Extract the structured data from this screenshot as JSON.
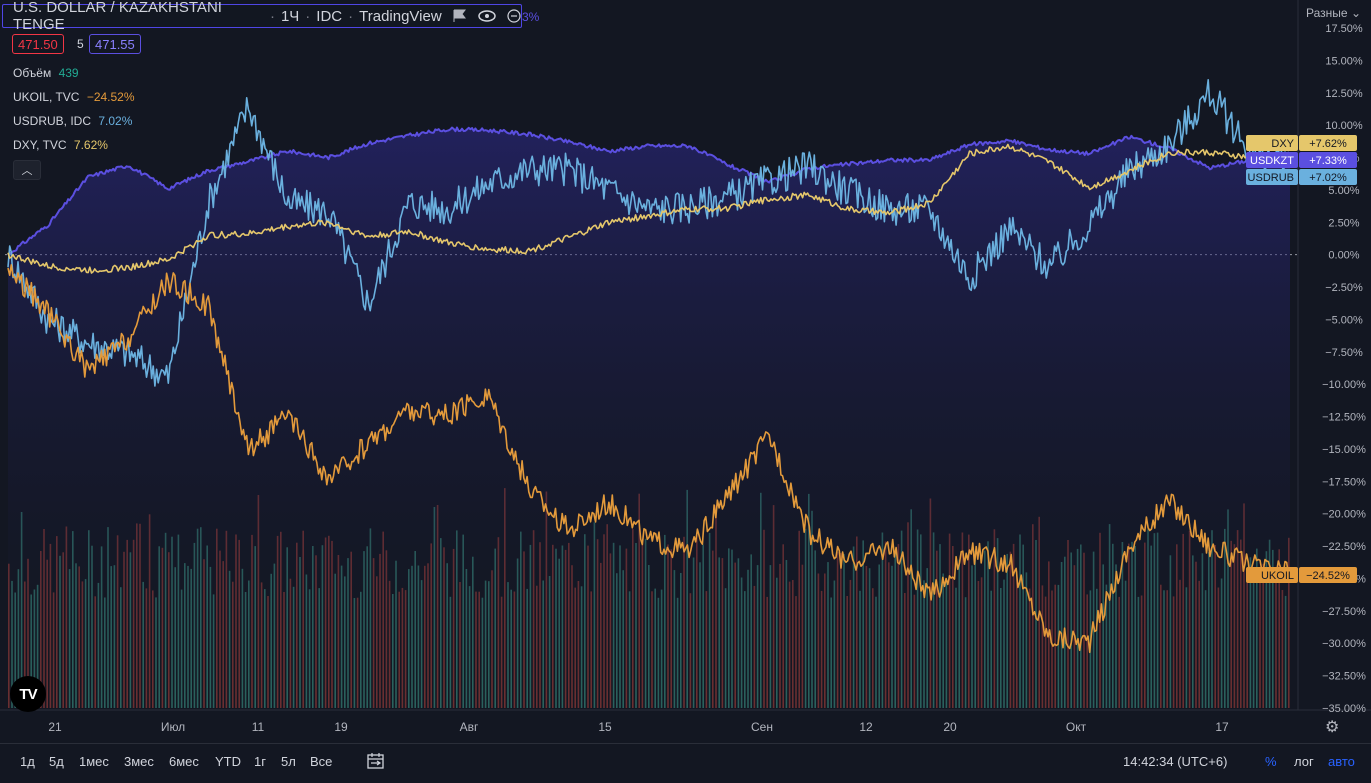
{
  "header": {
    "symbol": "U.S. DOLLAR / KAZAKHSTANI TENGE",
    "interval": "1Ч",
    "exchange": "IDC",
    "source": "TradingView",
    "extra": "3%"
  },
  "quote": {
    "bid": "471.50",
    "spread": "5",
    "ask": "471.55"
  },
  "legend": {
    "volume_label": "Объём",
    "volume_value": "439",
    "ukoil_label": "UKOIL, TVC",
    "ukoil_value": "−24.52%",
    "usdrub_label": "USDRUB, IDC",
    "usdrub_value": "7.02%",
    "dxy_label": "DXY, TVC",
    "dxy_value": "7.62%"
  },
  "scale_mode_label": "Разные",
  "bottom": {
    "periods": [
      "1д",
      "5д",
      "1мес",
      "3мес",
      "6мес",
      "YTD",
      "1г",
      "5л",
      "Все"
    ],
    "clock": "14:42:34 (UTC+6)",
    "percent": "%",
    "log": "лог",
    "auto": "авто"
  },
  "icons": [
    "eye-icon",
    "flag-icon",
    "compare-icon",
    "gear-icon",
    "chevron-up-icon",
    "tradingview-logo-icon",
    "date-range-icon"
  ],
  "colors": {
    "usdkzt": "#5b4fe0",
    "usdrub": "#6ab0de",
    "dxy": "#e5c76b",
    "ukoil": "#e39a3b",
    "vol_up": "#2f6e67",
    "vol_down": "#7a3434",
    "background": "#131722"
  },
  "chart_data": {
    "type": "line",
    "y_scale": "percent",
    "ylim": [
      -35,
      17.5
    ],
    "y_ticks": [
      "17.50%",
      "15.00%",
      "12.50%",
      "10.00%",
      "7.50%",
      "5.00%",
      "2.50%",
      "0.00%",
      "−2.50%",
      "−5.00%",
      "−7.50%",
      "−10.00%",
      "−12.50%",
      "−15.00%",
      "−17.50%",
      "−20.00%",
      "−22.50%",
      "−25.00%",
      "−27.50%",
      "−30.00%",
      "−32.50%",
      "−35.00%"
    ],
    "x_ticks": [
      "21",
      "Июл",
      "11",
      "19",
      "Авг",
      "15",
      "Сен",
      "12",
      "20",
      "Окт",
      "17"
    ],
    "series": [
      {
        "name": "USDKZT",
        "last_label": "+7.33%",
        "values": [
          0,
          2.3,
          6.0,
          6.9,
          5.1,
          6.5,
          7.2,
          8.0,
          7.5,
          8.6,
          9.2,
          9.7,
          9.6,
          9.3,
          8.7,
          8.0,
          8.4,
          8.4,
          6.9,
          5.6,
          6.7,
          7.0,
          7.3,
          7.3,
          8.5,
          8.8,
          8.1,
          7.8,
          9.1,
          8.2,
          6.7,
          7.3,
          7.4
        ]
      },
      {
        "name": "USDRUB",
        "last_label": "+7.02%",
        "values": [
          0,
          -5.0,
          -6.8,
          -7.6,
          -9.5,
          4.0,
          11.5,
          4.0,
          3.3,
          -3.8,
          4.0,
          3.5,
          5.5,
          6.6,
          6.6,
          5.0,
          3.5,
          3.7,
          4.5,
          5.7,
          6.8,
          4.8,
          3.5,
          3.5,
          -1.8,
          2.0,
          -1.0,
          2.3,
          6.5,
          8.5,
          12.5,
          8.0,
          7.0
        ]
      },
      {
        "name": "DXY",
        "last_label": "+7.62%",
        "values": [
          0,
          -0.9,
          -1.2,
          -1.0,
          -0.4,
          1.5,
          1.6,
          2.2,
          2.5,
          1.4,
          1.8,
          0.9,
          0.4,
          0.3,
          1.3,
          2.5,
          3.0,
          3.5,
          3.6,
          4.3,
          4.6,
          3.5,
          3.2,
          4.0,
          7.8,
          8.4,
          7.1,
          5.2,
          6.5,
          7.9,
          7.9,
          7.5,
          7.6
        ]
      },
      {
        "name": "UKOIL",
        "last_label": "−24.52%",
        "values": [
          -1,
          -4.5,
          -9.0,
          -6.5,
          -2.0,
          -4.0,
          -15.0,
          -12.5,
          -17.5,
          -14.5,
          -12.0,
          -12.5,
          -10.8,
          -18.0,
          -21.3,
          -19.0,
          -22.0,
          -23.0,
          -18.5,
          -14.0,
          -21.5,
          -23.8,
          -22.5,
          -26.5,
          -23.0,
          -23.8,
          -29.5,
          -29.8,
          -22.5,
          -19.0,
          -22.5,
          -24.0,
          -24.5
        ]
      }
    ],
    "volume_label": "Объём",
    "volume_last": "439"
  }
}
